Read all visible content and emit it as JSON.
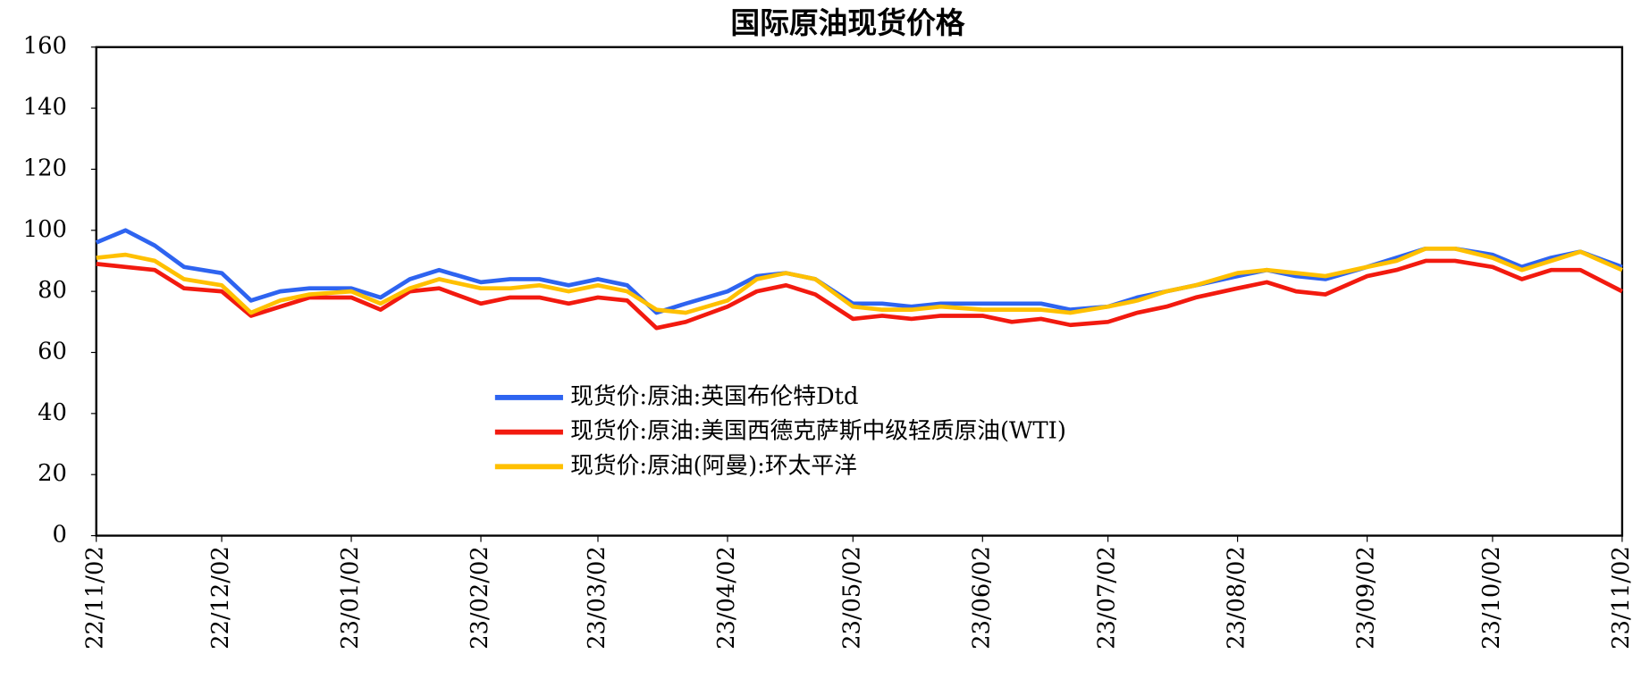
{
  "chart_data": {
    "type": "line",
    "title": "国际原油现货价格",
    "x": [
      "2022-11-02",
      "2022-11-09",
      "2022-11-16",
      "2022-11-23",
      "2022-12-02",
      "2022-12-09",
      "2022-12-16",
      "2022-12-23",
      "2023-01-02",
      "2023-01-09",
      "2023-01-16",
      "2023-01-23",
      "2023-02-02",
      "2023-02-09",
      "2023-02-16",
      "2023-02-23",
      "2023-03-02",
      "2023-03-09",
      "2023-03-16",
      "2023-03-23",
      "2023-04-02",
      "2023-04-09",
      "2023-04-16",
      "2023-04-23",
      "2023-05-02",
      "2023-05-09",
      "2023-05-16",
      "2023-05-23",
      "2023-06-02",
      "2023-06-09",
      "2023-06-16",
      "2023-06-23",
      "2023-07-02",
      "2023-07-09",
      "2023-07-16",
      "2023-07-23",
      "2023-08-02",
      "2023-08-09",
      "2023-08-16",
      "2023-08-23",
      "2023-09-02",
      "2023-09-09",
      "2023-09-16",
      "2023-09-23",
      "2023-10-02",
      "2023-10-09",
      "2023-10-16",
      "2023-10-23",
      "2023-11-02"
    ],
    "series": [
      {
        "name": "现货价:原油:英国布伦特Dtd",
        "color": "#2e64f0",
        "values": [
          96,
          100,
          95,
          88,
          86,
          77,
          80,
          81,
          81,
          78,
          84,
          87,
          83,
          84,
          84,
          82,
          84,
          82,
          73,
          76,
          80,
          85,
          86,
          84,
          76,
          76,
          75,
          76,
          76,
          76,
          76,
          74,
          75,
          78,
          80,
          82,
          85,
          87,
          85,
          84,
          88,
          91,
          94,
          94,
          92,
          88,
          91,
          93,
          88
        ]
      },
      {
        "name": "现货价:原油:美国西德克萨斯中级轻质原油(WTI)",
        "color": "#f21a0f",
        "values": [
          89,
          88,
          87,
          81,
          80,
          72,
          75,
          78,
          78,
          74,
          80,
          81,
          76,
          78,
          78,
          76,
          78,
          77,
          68,
          70,
          75,
          80,
          82,
          79,
          71,
          72,
          71,
          72,
          72,
          70,
          71,
          69,
          70,
          73,
          75,
          78,
          81,
          83,
          80,
          79,
          85,
          87,
          90,
          90,
          88,
          84,
          87,
          87,
          80
        ]
      },
      {
        "name": "现货价:原油(阿曼):环太平洋",
        "color": "#ffc000",
        "values": [
          91,
          92,
          90,
          84,
          82,
          73,
          77,
          79,
          80,
          76,
          81,
          84,
          81,
          81,
          82,
          80,
          82,
          80,
          74,
          73,
          77,
          84,
          86,
          84,
          75,
          74,
          74,
          75,
          74,
          74,
          74,
          73,
          75,
          77,
          80,
          82,
          86,
          87,
          86,
          85,
          88,
          90,
          94,
          94,
          91,
          87,
          90,
          93,
          87
        ]
      }
    ],
    "xlim": [
      "2022-11-02",
      "2023-11-02"
    ],
    "xticks": [
      {
        "value": "2022-11-02",
        "label": "22/11/02"
      },
      {
        "value": "2022-12-02",
        "label": "22/12/02"
      },
      {
        "value": "2023-01-02",
        "label": "23/01/02"
      },
      {
        "value": "2023-02-02",
        "label": "23/02/02"
      },
      {
        "value": "2023-03-02",
        "label": "23/03/02"
      },
      {
        "value": "2023-04-02",
        "label": "23/04/02"
      },
      {
        "value": "2023-05-02",
        "label": "23/05/02"
      },
      {
        "value": "2023-06-02",
        "label": "23/06/02"
      },
      {
        "value": "2023-07-02",
        "label": "23/07/02"
      },
      {
        "value": "2023-08-02",
        "label": "23/08/02"
      },
      {
        "value": "2023-09-02",
        "label": "23/09/02"
      },
      {
        "value": "2023-10-02",
        "label": "23/10/02"
      },
      {
        "value": "2023-11-02",
        "label": "23/11/02"
      }
    ],
    "ylim": [
      0,
      160
    ],
    "yticks": [
      0,
      20,
      40,
      60,
      80,
      100,
      120,
      140,
      160
    ],
    "grid": false
  }
}
